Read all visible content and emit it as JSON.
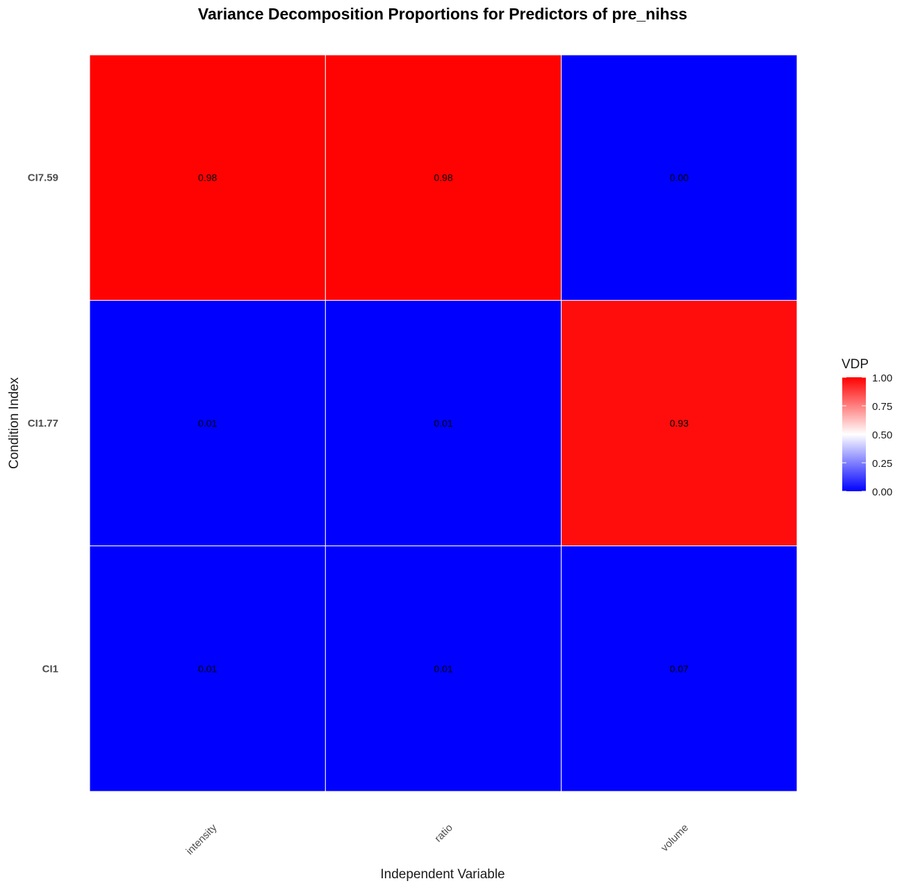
{
  "chart_data": {
    "type": "heatmap",
    "title": "Variance Decomposition Proportions for Predictors of pre_nihss",
    "xlabel": "Independent Variable",
    "ylabel": "Condition Index",
    "x_categories": [
      "intensity",
      "ratio",
      "volume"
    ],
    "y_categories": [
      "CI7.59",
      "CI1.77",
      "CI1"
    ],
    "values": [
      [
        0.98,
        0.98,
        0.0
      ],
      [
        0.01,
        0.01,
        0.93
      ],
      [
        0.01,
        0.01,
        0.07
      ]
    ],
    "cell_labels": [
      [
        "0.98",
        "0.98",
        "0.00"
      ],
      [
        "0.01",
        "0.01",
        "0.93"
      ],
      [
        "0.01",
        "0.01",
        "0.07"
      ]
    ],
    "legend": {
      "title": "VDP",
      "ticks": [
        "1.00",
        "0.75",
        "0.50",
        "0.25",
        "0.00"
      ],
      "tick_values": [
        1.0,
        0.75,
        0.5,
        0.25,
        0.0
      ],
      "placement": "right"
    },
    "color_scale": {
      "low": "#0000ff",
      "mid": "#ffffff",
      "high": "#ff0000",
      "midpoint": 0.5,
      "range": [
        0,
        1
      ]
    },
    "grid": false
  }
}
